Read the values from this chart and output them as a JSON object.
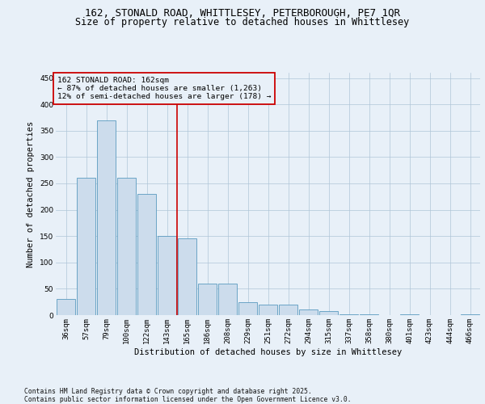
{
  "title_line1": "162, STONALD ROAD, WHITTLESEY, PETERBOROUGH, PE7 1QR",
  "title_line2": "Size of property relative to detached houses in Whittlesey",
  "xlabel": "Distribution of detached houses by size in Whittlesey",
  "ylabel": "Number of detached properties",
  "bin_labels": [
    "36sqm",
    "57sqm",
    "79sqm",
    "100sqm",
    "122sqm",
    "143sqm",
    "165sqm",
    "186sqm",
    "208sqm",
    "229sqm",
    "251sqm",
    "272sqm",
    "294sqm",
    "315sqm",
    "337sqm",
    "358sqm",
    "380sqm",
    "401sqm",
    "423sqm",
    "444sqm",
    "466sqm"
  ],
  "bar_heights": [
    30,
    260,
    370,
    260,
    230,
    150,
    145,
    60,
    60,
    25,
    20,
    20,
    10,
    8,
    2,
    2,
    0,
    2,
    0,
    0,
    2
  ],
  "bar_color": "#ccdcec",
  "bar_edge_color": "#5a9abf",
  "vline_index": 6,
  "vline_color": "#cc0000",
  "annotation_line1": "162 STONALD ROAD: 162sqm",
  "annotation_line2": "← 87% of detached houses are smaller (1,263)",
  "annotation_line3": "12% of semi-detached houses are larger (178) →",
  "annotation_box_edgecolor": "#cc0000",
  "background_color": "#e8f0f8",
  "ylim_max": 460,
  "yticks": [
    0,
    50,
    100,
    150,
    200,
    250,
    300,
    350,
    400,
    450
  ],
  "footer_line1": "Contains HM Land Registry data © Crown copyright and database right 2025.",
  "footer_line2": "Contains public sector information licensed under the Open Government Licence v3.0.",
  "title_fontsize": 9.0,
  "subtitle_fontsize": 8.5,
  "ylabel_fontsize": 7.5,
  "xlabel_fontsize": 7.5,
  "tick_fontsize": 6.5,
  "ann_fontsize": 6.8,
  "footer_fontsize": 5.8
}
